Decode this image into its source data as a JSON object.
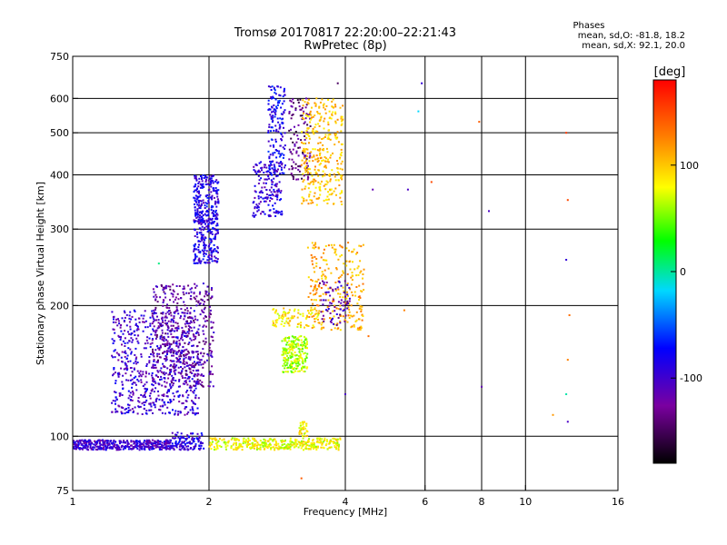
{
  "chart_data": {
    "type": "scatter",
    "title": "Tromsø 20170817 22:20:00–22:21:43",
    "subtitle": "RwPretec (8p)",
    "stats": {
      "heading": "Phases",
      "line1": "mean, sd,O: -81.8, 18.2",
      "line2": "mean, sd,X: 92.1, 20.0"
    },
    "xlabel": "Frequency [MHz]",
    "ylabel": "Stationary phase Virtual Height [km]",
    "x_scale": "log",
    "y_scale": "log",
    "xlim": [
      1,
      16
    ],
    "ylim": [
      75,
      750
    ],
    "x_ticks": [
      1,
      2,
      4,
      6,
      8,
      10,
      16
    ],
    "x_tick_labels": [
      "1",
      "2",
      "4",
      "6",
      "8",
      "10",
      "16"
    ],
    "y_ticks": [
      75,
      100,
      200,
      300,
      400,
      500,
      600,
      750
    ],
    "y_tick_labels": [
      "75",
      "100",
      "200",
      "300",
      "400",
      "500",
      "600",
      "750"
    ],
    "grid": true,
    "colorbar": {
      "label": "[deg]",
      "range": [
        -180,
        180
      ],
      "ticks": [
        100,
        0,
        -100
      ],
      "tick_labels": [
        "100",
        "0",
        "-100"
      ]
    },
    "clusters": [
      {
        "x": [
          1.0,
          1.65
        ],
        "y": [
          93,
          98
        ],
        "phase": -105,
        "density": 420
      },
      {
        "x": [
          1.65,
          1.95
        ],
        "y": [
          93,
          102
        ],
        "phase": -95,
        "density": 120
      },
      {
        "x": [
          2.0,
          3.9
        ],
        "y": [
          93,
          99
        ],
        "phase": 60,
        "density": 380
      },
      {
        "x": [
          3.15,
          3.3
        ],
        "y": [
          100,
          108
        ],
        "phase": 65,
        "density": 35
      },
      {
        "x": [
          1.22,
          1.9
        ],
        "y": [
          112,
          195
        ],
        "phase": -105,
        "density": 700
      },
      {
        "x": [
          1.5,
          2.05
        ],
        "y": [
          130,
          225
        ],
        "phase": -125,
        "density": 450
      },
      {
        "x": [
          1.85,
          2.1
        ],
        "y": [
          250,
          400
        ],
        "phase": -95,
        "density": 420
      },
      {
        "x": [
          2.5,
          2.9
        ],
        "y": [
          320,
          430
        ],
        "phase": -100,
        "density": 180
      },
      {
        "x": [
          2.7,
          2.95
        ],
        "y": [
          400,
          640
        ],
        "phase": -85,
        "density": 150
      },
      {
        "x": [
          3.0,
          3.35
        ],
        "y": [
          390,
          600
        ],
        "phase": -140,
        "density": 110
      },
      {
        "x": [
          3.2,
          3.95
        ],
        "y": [
          340,
          600
        ],
        "phase": 85,
        "density": 330
      },
      {
        "x": [
          2.9,
          3.3
        ],
        "y": [
          140,
          170
        ],
        "phase": 45,
        "density": 220
      },
      {
        "x": [
          3.3,
          4.4
        ],
        "y": [
          175,
          280
        ],
        "phase": 95,
        "density": 260
      },
      {
        "x": [
          3.5,
          4.1
        ],
        "y": [
          180,
          230
        ],
        "phase": -120,
        "density": 70
      },
      {
        "x": [
          2.75,
          3.5
        ],
        "y": [
          178,
          198
        ],
        "phase": 70,
        "density": 90
      }
    ],
    "sparse_points": [
      {
        "x": 1.55,
        "y": 250,
        "phase": -5
      },
      {
        "x": 3.2,
        "y": 80,
        "phase": 130
      },
      {
        "x": 4.6,
        "y": 370,
        "phase": -120
      },
      {
        "x": 5.5,
        "y": 370,
        "phase": -110
      },
      {
        "x": 5.8,
        "y": 560,
        "phase": -20
      },
      {
        "x": 5.9,
        "y": 650,
        "phase": -100
      },
      {
        "x": 6.2,
        "y": 385,
        "phase": 140
      },
      {
        "x": 7.9,
        "y": 530,
        "phase": 130
      },
      {
        "x": 8.0,
        "y": 130,
        "phase": -120
      },
      {
        "x": 8.3,
        "y": 330,
        "phase": -110
      },
      {
        "x": 12.3,
        "y": 500,
        "phase": 150
      },
      {
        "x": 12.4,
        "y": 350,
        "phase": 140
      },
      {
        "x": 12.3,
        "y": 255,
        "phase": -100
      },
      {
        "x": 12.5,
        "y": 190,
        "phase": 120
      },
      {
        "x": 12.4,
        "y": 150,
        "phase": 110
      },
      {
        "x": 12.3,
        "y": 125,
        "phase": -10
      },
      {
        "x": 12.4,
        "y": 108,
        "phase": -110
      },
      {
        "x": 11.5,
        "y": 112,
        "phase": 100
      },
      {
        "x": 4.0,
        "y": 125,
        "phase": -110
      },
      {
        "x": 4.5,
        "y": 170,
        "phase": 120
      },
      {
        "x": 5.4,
        "y": 195,
        "phase": 110
      },
      {
        "x": 4.3,
        "y": 210,
        "phase": 130
      },
      {
        "x": 3.85,
        "y": 650,
        "phase": -150
      }
    ]
  }
}
